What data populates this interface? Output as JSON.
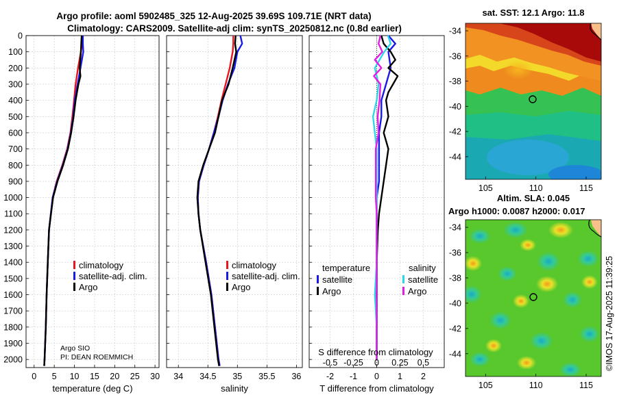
{
  "header": {
    "title_line1": "Argo profile: aoml 5902485_325 12-Aug-2025 39.69S 109.71E (NRT data)",
    "title_line2": "Climatology: CARS2009. Satellite-adj clim: synTS_20250812.nc (0.8d earlier)"
  },
  "depth_ticks": [
    "0",
    "100",
    "200",
    "300",
    "400",
    "500",
    "600",
    "700",
    "800",
    "900",
    "1000",
    "1100",
    "1200",
    "1300",
    "1400",
    "1500",
    "1600",
    "1700",
    "1800",
    "1900",
    "2000"
  ],
  "colors": {
    "climatology": "#e8141e",
    "satellite": "#1a1ae6",
    "argo": "#000000",
    "sat_diff_T": "#2fd6e8",
    "argo_diff_S": "#e21ee6"
  },
  "chart_data": [
    {
      "type": "line",
      "name": "temperature",
      "title": "",
      "xlabel": "temperature (deg C)",
      "ylabel": "",
      "xlim": [
        -2,
        31
      ],
      "ylim": [
        2050,
        0
      ],
      "xticks": [
        "0",
        "5",
        "10",
        "15",
        "20",
        "25",
        "30"
      ],
      "legend": [
        "climatology",
        "satellite-adj. clim.",
        "Argo"
      ],
      "source_note": [
        "Argo SIO",
        "PI: DEAN ROEMMICH"
      ],
      "series": [
        {
          "name": "climatology",
          "depth": [
            0,
            50,
            100,
            200,
            300,
            400,
            500,
            600,
            700,
            800,
            900,
            1000,
            1200,
            1400,
            1600,
            1800,
            2000,
            2040
          ],
          "values": [
            12.0,
            11.9,
            11.6,
            10.9,
            10.3,
            9.9,
            9.5,
            9.0,
            8.2,
            7.0,
            5.6,
            4.6,
            3.7,
            3.4,
            3.1,
            2.9,
            2.6,
            2.5
          ]
        },
        {
          "name": "satellite-adj. clim.",
          "depth": [
            0,
            50,
            100,
            200,
            300,
            400,
            500,
            600,
            700,
            800,
            900,
            1000,
            1200,
            1400,
            1600,
            1800,
            2000,
            2040
          ],
          "values": [
            12.1,
            12.1,
            12.2,
            11.5,
            10.8,
            10.1,
            9.7,
            9.1,
            8.3,
            7.1,
            5.7,
            4.6,
            3.7,
            3.4,
            3.1,
            2.9,
            2.6,
            2.5
          ]
        },
        {
          "name": "Argo",
          "depth": [
            0,
            50,
            100,
            200,
            250,
            300,
            400,
            500,
            600,
            700,
            800,
            900,
            1000,
            1200,
            1400,
            1600,
            1800,
            2000,
            2040
          ],
          "values": [
            11.8,
            11.7,
            11.6,
            11.3,
            11.5,
            11.0,
            10.3,
            9.8,
            9.2,
            8.4,
            7.2,
            5.8,
            4.7,
            3.7,
            3.4,
            3.1,
            2.9,
            2.6,
            2.5
          ]
        }
      ]
    },
    {
      "type": "line",
      "name": "salinity",
      "title": "",
      "xlabel": "salinity",
      "ylabel": "",
      "xlim": [
        33.8,
        36.1
      ],
      "ylim": [
        2050,
        0
      ],
      "xticks": [
        "34",
        "34.5",
        "35",
        "35.5",
        "36"
      ],
      "legend": [
        "climatology",
        "satellite-adj. clim.",
        "Argo"
      ],
      "series": [
        {
          "name": "climatology",
          "depth": [
            0,
            50,
            100,
            200,
            300,
            400,
            500,
            600,
            700,
            800,
            900,
            1000,
            1100,
            1200,
            1400,
            1600,
            1800,
            2000,
            2040
          ],
          "values": [
            34.93,
            34.93,
            34.92,
            34.87,
            34.8,
            34.73,
            34.67,
            34.6,
            34.52,
            34.43,
            34.35,
            34.33,
            34.34,
            34.37,
            34.47,
            34.56,
            34.62,
            34.68,
            34.7
          ]
        },
        {
          "name": "satellite-adj. clim.",
          "depth": [
            0,
            50,
            100,
            200,
            300,
            400,
            500,
            600,
            700,
            800,
            900,
            1000,
            1100,
            1200,
            1400,
            1600,
            1800,
            2000,
            2040
          ],
          "values": [
            35.05,
            35.08,
            35.0,
            34.95,
            34.84,
            34.75,
            34.68,
            34.6,
            34.52,
            34.43,
            34.35,
            34.33,
            34.34,
            34.37,
            34.47,
            34.56,
            34.62,
            34.68,
            34.7
          ]
        },
        {
          "name": "Argo",
          "depth": [
            0,
            50,
            100,
            200,
            300,
            400,
            500,
            600,
            700,
            800,
            900,
            1000,
            1100,
            1200,
            1400,
            1600,
            1800,
            2000,
            2040
          ],
          "values": [
            34.97,
            34.96,
            34.98,
            34.92,
            34.85,
            34.74,
            34.68,
            34.62,
            34.52,
            34.42,
            34.34,
            34.32,
            34.34,
            34.37,
            34.46,
            34.55,
            34.61,
            34.67,
            34.69
          ]
        }
      ]
    },
    {
      "type": "line",
      "name": "differences",
      "title": "",
      "xlabel": "T difference from climatology",
      "xlabel_top": "S difference from climatology",
      "ylabel": "",
      "xlim": [
        -2.9,
        2.9
      ],
      "ylim": [
        2050,
        0
      ],
      "xticks": [
        "-2",
        "-1",
        "0",
        "1",
        "2"
      ],
      "sticks": [
        "-0.5",
        "-0.25",
        "0",
        "0.25",
        "0.5"
      ],
      "legend_headers": [
        "temperature",
        "salinity"
      ],
      "legend_T": [
        "satellite",
        "Argo"
      ],
      "legend_S": [
        "satellite",
        "Argo"
      ],
      "series": [
        {
          "name": "satellite T diff",
          "depth": [
            0,
            50,
            100,
            200,
            300,
            400,
            500,
            600,
            700,
            800,
            900,
            1000,
            1200,
            1400,
            1600,
            1800,
            2000
          ],
          "values": [
            0.5,
            0.8,
            0.5,
            0.6,
            0.4,
            0.2,
            0.2,
            0.1,
            0.1,
            0.1,
            0.1,
            0.0,
            0.0,
            0.0,
            0.0,
            0.0,
            0.0
          ]
        },
        {
          "name": "Argo T diff",
          "depth": [
            0,
            50,
            100,
            150,
            200,
            250,
            300,
            350,
            400,
            500,
            600,
            700,
            800,
            900,
            1000,
            1100,
            1200,
            1400,
            1600,
            1800,
            2000
          ],
          "values": [
            0.2,
            0.3,
            0.6,
            0.8,
            0.5,
            0.9,
            0.7,
            0.5,
            0.4,
            0.5,
            0.3,
            0.5,
            0.4,
            0.3,
            0.2,
            0.1,
            0.05,
            0.0,
            0.0,
            0.0,
            0.0
          ]
        },
        {
          "name": "satellite S diff",
          "depth": [
            0,
            50,
            100,
            200,
            300,
            400,
            500,
            600,
            700,
            800,
            900,
            1000,
            1200,
            1400,
            1600,
            1800,
            2000
          ],
          "values": [
            0.12,
            0.15,
            0.08,
            -0.02,
            0.02,
            0.0,
            -0.04,
            -0.02,
            0.0,
            0.0,
            0.0,
            0.0,
            0.0,
            0.0,
            -0.02,
            0.0,
            0.0
          ]
        },
        {
          "name": "Argo S diff",
          "depth": [
            0,
            50,
            100,
            150,
            200,
            250,
            300,
            400,
            500,
            600,
            700,
            800,
            900,
            1000,
            1100,
            1200,
            1400,
            1600,
            1800,
            2000
          ],
          "values": [
            0.04,
            0.02,
            0.06,
            -0.02,
            0.05,
            -0.03,
            0.04,
            0.03,
            0.01,
            0.02,
            -0.01,
            -0.01,
            -0.01,
            -0.01,
            0.0,
            0.0,
            0.0,
            0.0,
            0.0,
            0.0
          ]
        }
      ]
    },
    {
      "type": "heatmap",
      "name": "sst_map",
      "title": "sat. SST: 12.1 Argo: 11.8",
      "xlabel": "",
      "ylabel": "",
      "xlim": [
        103,
        116.5
      ],
      "ylim": [
        -45.8,
        -33.4
      ],
      "xticks": [
        "105",
        "110",
        "115"
      ],
      "yticks": [
        "-34",
        "-36",
        "-38",
        "-40",
        "-42",
        "-44"
      ],
      "profile_location": [
        109.71,
        -39.69
      ]
    },
    {
      "type": "heatmap",
      "name": "sla_map",
      "title": "Altim. SLA: 0.045",
      "subtitle": "Argo h1000: 0.0087 h2000: 0.017",
      "xlabel": "",
      "ylabel": "",
      "xlim": [
        103,
        116.5
      ],
      "ylim": [
        -45.8,
        -33.4
      ],
      "xticks": [
        "105",
        "110",
        "115"
      ],
      "yticks": [
        "-34",
        "-36",
        "-38",
        "-40",
        "-42",
        "-44"
      ],
      "profile_location": [
        109.71,
        -39.69
      ]
    }
  ],
  "credit": "©IMOS 17-Aug-2025 11:39:25"
}
